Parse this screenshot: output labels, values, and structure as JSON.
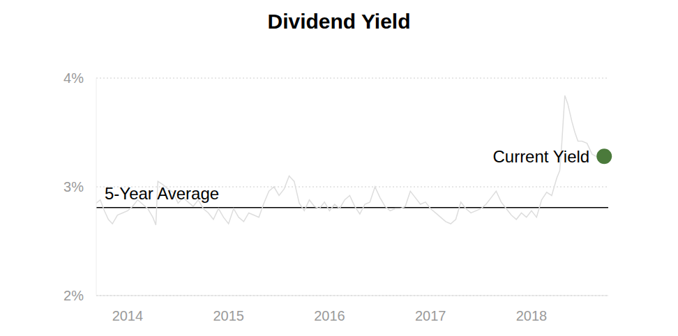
{
  "chart_data": {
    "type": "line",
    "title": "Dividend Yield",
    "x": [
      2013.69,
      2013.73,
      2013.77,
      2013.81,
      2013.85,
      2013.9,
      2013.95,
      2014.0,
      2014.05,
      2014.1,
      2014.15,
      2014.2,
      2014.25,
      2014.28,
      2014.3,
      2014.35,
      2014.4,
      2014.45,
      2014.5,
      2014.55,
      2014.6,
      2014.65,
      2014.7,
      2014.75,
      2014.8,
      2014.85,
      2014.9,
      2014.95,
      2015.0,
      2015.05,
      2015.1,
      2015.15,
      2015.2,
      2015.25,
      2015.3,
      2015.35,
      2015.4,
      2015.45,
      2015.5,
      2015.55,
      2015.6,
      2015.65,
      2015.7,
      2015.75,
      2015.8,
      2015.85,
      2015.9,
      2015.95,
      2016.0,
      2016.05,
      2016.1,
      2016.15,
      2016.2,
      2016.25,
      2016.3,
      2016.35,
      2016.4,
      2016.45,
      2016.5,
      2016.55,
      2016.6,
      2016.65,
      2016.7,
      2016.75,
      2016.8,
      2016.85,
      2016.9,
      2016.95,
      2017.0,
      2017.05,
      2017.1,
      2017.15,
      2017.2,
      2017.25,
      2017.3,
      2017.35,
      2017.4,
      2017.45,
      2017.5,
      2017.55,
      2017.6,
      2017.65,
      2017.7,
      2017.75,
      2017.8,
      2017.85,
      2017.9,
      2017.95,
      2018.0,
      2018.05,
      2018.1,
      2018.15,
      2018.2,
      2018.25,
      2018.28,
      2018.3,
      2018.33,
      2018.36,
      2018.4,
      2018.43,
      2018.46,
      2018.5,
      2018.55,
      2018.6,
      2018.64
    ],
    "values": [
      2.85,
      2.88,
      2.78,
      2.7,
      2.66,
      2.74,
      2.76,
      2.78,
      2.82,
      2.88,
      2.84,
      2.8,
      2.72,
      2.65,
      3.05,
      3.02,
      2.98,
      2.95,
      2.85,
      2.9,
      2.86,
      2.82,
      2.88,
      2.8,
      2.76,
      2.7,
      2.8,
      2.72,
      2.66,
      2.8,
      2.72,
      2.68,
      2.76,
      2.74,
      2.72,
      2.85,
      2.96,
      3.0,
      2.92,
      2.98,
      3.1,
      3.05,
      2.85,
      2.78,
      2.88,
      2.82,
      2.8,
      2.86,
      2.78,
      2.84,
      2.8,
      2.88,
      2.92,
      2.82,
      2.75,
      2.84,
      2.86,
      3.0,
      2.9,
      2.82,
      2.78,
      2.8,
      2.8,
      2.82,
      2.96,
      2.9,
      2.84,
      2.86,
      2.8,
      2.76,
      2.72,
      2.68,
      2.66,
      2.7,
      2.86,
      2.8,
      2.76,
      2.78,
      2.8,
      2.84,
      2.9,
      2.96,
      2.86,
      2.8,
      2.74,
      2.7,
      2.76,
      2.72,
      2.78,
      2.72,
      2.88,
      2.95,
      2.92,
      3.08,
      3.15,
      3.4,
      3.84,
      3.76,
      3.6,
      3.5,
      3.42,
      3.42,
      3.4,
      3.3,
      3.28
    ],
    "color": "#dddddd",
    "xlim": [
      2013.69,
      2018.76
    ],
    "xticks": [
      2014,
      2015,
      2016,
      2017,
      2018
    ],
    "ylim": [
      2,
      4
    ],
    "yticks": [
      {
        "value": 2,
        "label": "2%"
      },
      {
        "value": 3,
        "label": "3%"
      },
      {
        "value": 4,
        "label": "4%"
      }
    ],
    "grid": true,
    "average": {
      "label": "5-Year Average",
      "value": 2.81
    },
    "current": {
      "label": "Current Yield",
      "x": 2018.72,
      "value": 3.28,
      "color": "#4b7a3b"
    }
  }
}
